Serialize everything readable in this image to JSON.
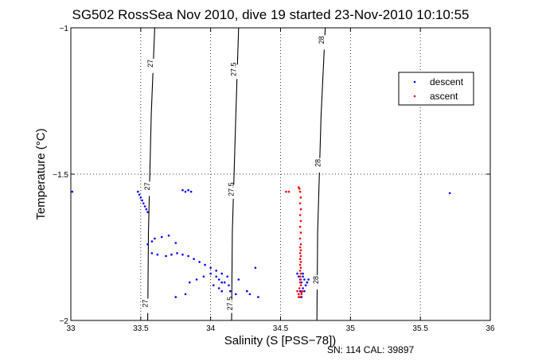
{
  "chart_data": {
    "type": "scatter",
    "title": "SG502 RossSea Nov 2010, dive 19 started 23-Nov-2010 10:10:55",
    "xlabel": "Salinity (S [PSS−78])",
    "ylabel": "Temperature (°C)",
    "xlim": [
      33,
      36
    ],
    "ylim": [
      -2,
      -1
    ],
    "xticks": [
      33,
      33.5,
      34,
      34.5,
      35,
      35.5,
      36
    ],
    "xtick_labels": [
      "33",
      "33.5",
      "34",
      "34.5",
      "35",
      "35.5",
      "36"
    ],
    "yticks": [
      -2,
      -1.5,
      -1
    ],
    "ytick_labels": [
      "−2",
      "−1.5",
      "−1"
    ],
    "grid": true,
    "legend_position": "top-right",
    "footer": "SN: 114  CAL: 39897",
    "density_contours": [
      {
        "label": "27",
        "points": [
          [
            33.55,
            -2
          ],
          [
            33.555,
            -1.7
          ],
          [
            33.575,
            -1.3
          ],
          [
            33.6,
            -1
          ]
        ],
        "label_at": [
          [
            33.55,
            -1.95
          ],
          [
            33.565,
            -1.55
          ],
          [
            33.585,
            -1.13
          ]
        ]
      },
      {
        "label": "27.5",
        "points": [
          [
            34.15,
            -2
          ],
          [
            34.155,
            -1.7
          ],
          [
            34.18,
            -1.3
          ],
          [
            34.2,
            -1
          ]
        ],
        "label_at": [
          [
            34.155,
            -1.95
          ],
          [
            34.165,
            -1.56
          ],
          [
            34.18,
            -1.15
          ]
        ]
      },
      {
        "label": "28",
        "points": [
          [
            34.76,
            -2
          ],
          [
            34.765,
            -1.7
          ],
          [
            34.79,
            -1.3
          ],
          [
            34.82,
            -1
          ]
        ],
        "label_at": [
          [
            34.77,
            -1.87
          ],
          [
            34.785,
            -1.47
          ],
          [
            34.81,
            -1.05
          ]
        ]
      }
    ],
    "series": [
      {
        "name": "descent",
        "color": "#0000ff",
        "x": [
          33.01,
          33.48,
          33.49,
          33.5,
          33.51,
          33.52,
          33.53,
          33.54,
          33.55,
          33.8,
          33.82,
          33.84,
          33.86,
          33.55,
          33.58,
          33.6,
          33.65,
          33.7,
          33.75,
          33.58,
          33.62,
          33.68,
          33.72,
          33.76,
          33.8,
          33.84,
          33.88,
          33.92,
          33.96,
          34.0,
          34.04,
          34.08,
          34.12,
          34.0,
          34.04,
          34.06,
          34.08,
          34.1,
          34.13,
          33.85,
          33.9,
          33.95,
          34.02,
          34.06,
          34.14,
          34.18,
          34.28,
          34.34,
          33.75,
          33.82,
          34.08,
          34.2,
          34.26,
          34.32,
          34.62,
          34.63,
          34.64,
          34.65,
          34.66,
          34.67,
          34.68,
          34.69,
          34.64,
          34.66,
          34.68,
          34.7,
          34.63,
          34.65,
          34.67,
          34.69,
          34.64,
          34.66,
          35.71
        ],
        "y": [
          -1.56,
          -1.56,
          -1.57,
          -1.58,
          -1.59,
          -1.6,
          -1.61,
          -1.62,
          -1.63,
          -1.555,
          -1.56,
          -1.555,
          -1.56,
          -1.74,
          -1.73,
          -1.72,
          -1.715,
          -1.71,
          -1.735,
          -1.77,
          -1.775,
          -1.78,
          -1.775,
          -1.77,
          -1.775,
          -1.78,
          -1.79,
          -1.8,
          -1.81,
          -1.82,
          -1.83,
          -1.84,
          -1.85,
          -1.84,
          -1.85,
          -1.86,
          -1.87,
          -1.87,
          -1.88,
          -1.87,
          -1.86,
          -1.85,
          -1.88,
          -1.89,
          -1.9,
          -1.91,
          -1.91,
          -1.92,
          -1.92,
          -1.91,
          -1.9,
          -1.86,
          -1.9,
          -1.82,
          -1.84,
          -1.85,
          -1.86,
          -1.87,
          -1.85,
          -1.86,
          -1.88,
          -1.87,
          -1.9,
          -1.89,
          -1.88,
          -1.86,
          -1.91,
          -1.92,
          -1.9,
          -1.87,
          -1.85,
          -1.84,
          -1.565
        ]
      },
      {
        "name": "ascent",
        "color": "#ff0000",
        "x": [
          34.54,
          34.56,
          34.63,
          34.635,
          34.64,
          34.645,
          34.64,
          34.645,
          34.64,
          34.645,
          34.64,
          34.645,
          34.64,
          34.645,
          34.64,
          34.645,
          34.64,
          34.645,
          34.64,
          34.645,
          34.64,
          34.645,
          34.64,
          34.645,
          34.64,
          34.645,
          34.64,
          34.645,
          34.635,
          34.655,
          34.62,
          34.63,
          34.65,
          34.63,
          34.64,
          34.65
        ],
        "y": [
          -1.56,
          -1.56,
          -1.545,
          -1.55,
          -1.56,
          -1.58,
          -1.6,
          -1.62,
          -1.64,
          -1.66,
          -1.68,
          -1.7,
          -1.72,
          -1.74,
          -1.75,
          -1.76,
          -1.77,
          -1.78,
          -1.79,
          -1.8,
          -1.81,
          -1.82,
          -1.83,
          -1.84,
          -1.85,
          -1.86,
          -1.87,
          -1.88,
          -1.89,
          -1.9,
          -1.9,
          -1.91,
          -1.91,
          -1.92,
          -1.92,
          -1.905
        ]
      }
    ]
  }
}
